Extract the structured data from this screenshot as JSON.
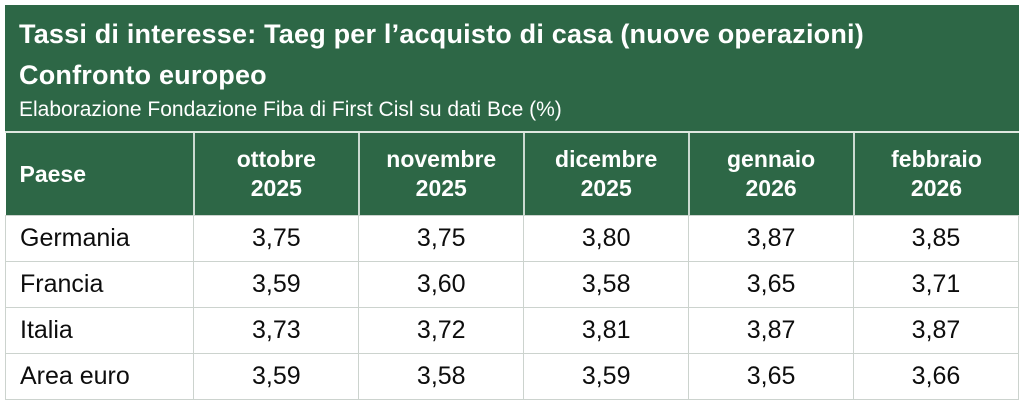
{
  "colors": {
    "brand_green": "#2d6746",
    "header_text": "#ffffff",
    "body_text": "#0d0d0d",
    "grid_line": "#ccd3ce"
  },
  "header": {
    "title": "Tassi di interesse: Taeg per l’acquisto di casa (nuove operazioni)",
    "subtitle": "Confronto europeo",
    "source_note": "Elaborazione Fondazione Fiba di First Cisl su dati Bce (%)"
  },
  "table": {
    "row_header_label": "Paese",
    "columns": [
      {
        "month": "ottobre",
        "year": "2025"
      },
      {
        "month": "novembre",
        "year": "2025"
      },
      {
        "month": "dicembre",
        "year": "2025"
      },
      {
        "month": "gennaio",
        "year": "2026"
      },
      {
        "month": "febbraio",
        "year": "2026"
      }
    ],
    "rows": [
      {
        "name": "Germania",
        "values": [
          "3,75",
          "3,75",
          "3,80",
          "3,87",
          "3,85"
        ]
      },
      {
        "name": "Francia",
        "values": [
          "3,59",
          "3,60",
          "3,58",
          "3,65",
          "3,71"
        ]
      },
      {
        "name": "Italia",
        "values": [
          "3,73",
          "3,72",
          "3,81",
          "3,87",
          "3,87"
        ]
      },
      {
        "name": "Area euro",
        "values": [
          "3,59",
          "3,58",
          "3,59",
          "3,65",
          "3,66"
        ]
      }
    ]
  },
  "chart_data": {
    "type": "table",
    "title": "Tassi di interesse: Taeg per l’acquisto di casa (nuove operazioni)",
    "subtitle": "Confronto europeo",
    "source_note": "Elaborazione Fondazione Fiba di First Cisl su dati Bce (%)",
    "unit": "%",
    "categories": [
      "ottobre 2025",
      "novembre 2025",
      "dicembre 2025",
      "gennaio 2026",
      "febbraio 2026"
    ],
    "series": [
      {
        "name": "Germania",
        "values": [
          3.75,
          3.75,
          3.8,
          3.87,
          3.85
        ]
      },
      {
        "name": "Francia",
        "values": [
          3.59,
          3.6,
          3.58,
          3.65,
          3.71
        ]
      },
      {
        "name": "Italia",
        "values": [
          3.73,
          3.72,
          3.81,
          3.87,
          3.87
        ]
      },
      {
        "name": "Area euro",
        "values": [
          3.59,
          3.58,
          3.59,
          3.65,
          3.66
        ]
      }
    ]
  }
}
